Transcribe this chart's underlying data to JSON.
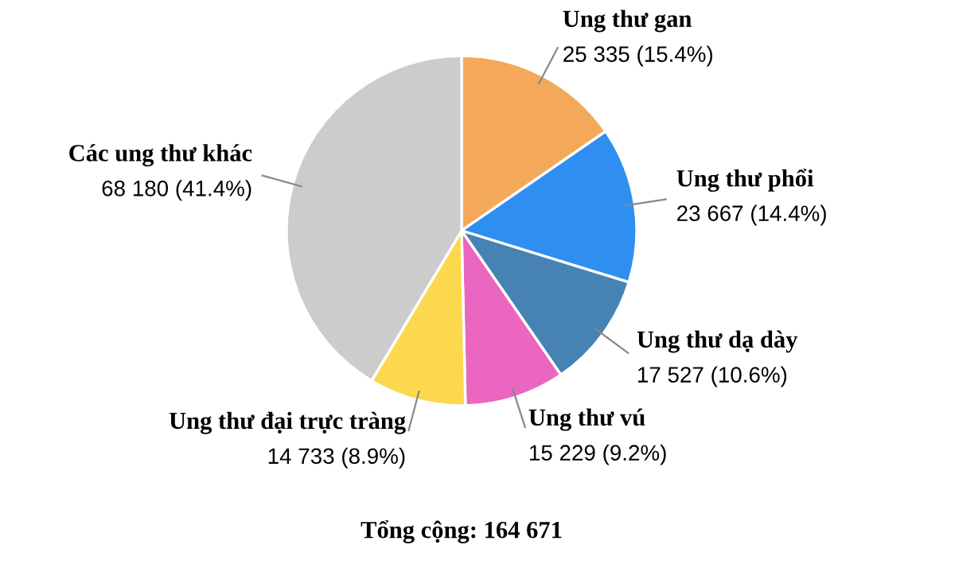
{
  "chart_data": {
    "type": "pie",
    "categories": [
      "Ung thư gan",
      "Ung thư phổi",
      "Ung thư dạ dày",
      "Ung thư vú",
      "Ung thư đại trực tràng",
      "Các ung thư khác"
    ],
    "values": [
      25335,
      23667,
      17527,
      15229,
      14733,
      68180
    ],
    "value_labels": [
      "25 335 (15.4%)",
      "23 667 (14.4%)",
      "17 527 (10.6%)",
      "15 229 (9.2%)",
      "14 733 (8.9%)",
      "68 180 (41.4%)"
    ],
    "colors": [
      "#f4a95a",
      "#2f8ff0",
      "#4682b4",
      "#ea66c0",
      "#fcd84e",
      "#cccccc"
    ],
    "annotations": [
      "Tổng cộng: 164 671"
    ]
  }
}
